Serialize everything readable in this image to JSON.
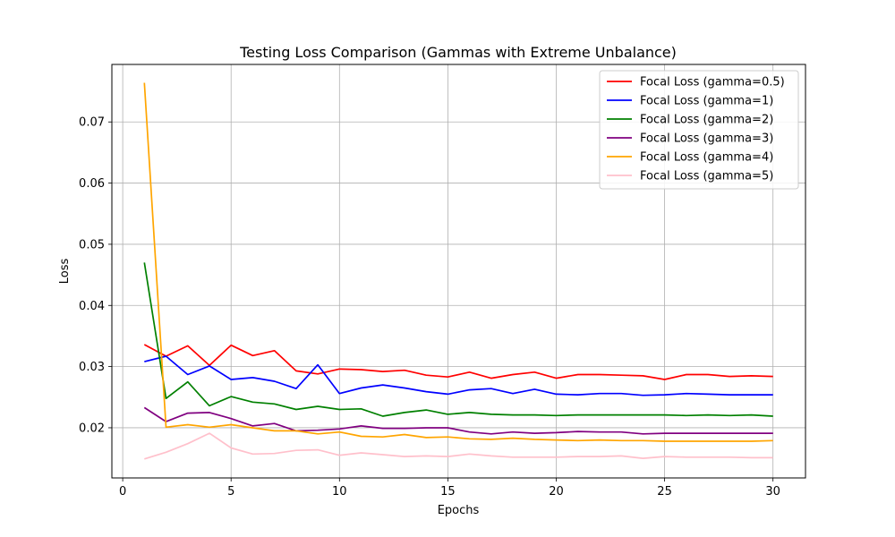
{
  "chart_data": {
    "type": "line",
    "title": "Testing Loss Comparison (Gammas with Extreme Unbalance)",
    "xlabel": "Epochs",
    "ylabel": "Loss",
    "xlim": [
      -0.5,
      31.5
    ],
    "ylim": [
      0.0118,
      0.0794
    ],
    "xticks": [
      0,
      5,
      10,
      15,
      20,
      25,
      30
    ],
    "yticks": [
      0.02,
      0.03,
      0.04,
      0.05,
      0.06,
      0.07
    ],
    "xtick_labels": [
      "0",
      "5",
      "10",
      "15",
      "20",
      "25",
      "30"
    ],
    "ytick_labels": [
      "0.02",
      "0.03",
      "0.04",
      "0.05",
      "0.06",
      "0.07"
    ],
    "grid": true,
    "legend_position": "top-right",
    "x": [
      1,
      2,
      3,
      4,
      5,
      6,
      7,
      8,
      9,
      10,
      11,
      12,
      13,
      14,
      15,
      16,
      17,
      18,
      19,
      20,
      21,
      22,
      23,
      24,
      25,
      26,
      27,
      28,
      29,
      30
    ],
    "series": [
      {
        "name": "Focal Loss (gamma=0.5)",
        "color": "#ff0000",
        "values": [
          0.0336,
          0.0317,
          0.0334,
          0.0302,
          0.0335,
          0.0318,
          0.0326,
          0.0293,
          0.0288,
          0.0296,
          0.0295,
          0.0292,
          0.0294,
          0.0286,
          0.0283,
          0.0291,
          0.0281,
          0.0287,
          0.0291,
          0.0281,
          0.0287,
          0.0287,
          0.0286,
          0.0285,
          0.0279,
          0.0287,
          0.0287,
          0.0284,
          0.0285,
          0.0284
        ]
      },
      {
        "name": "Focal Loss (gamma=1)",
        "color": "#0000ff",
        "values": [
          0.0308,
          0.0317,
          0.0287,
          0.0301,
          0.0279,
          0.0282,
          0.0276,
          0.0264,
          0.0303,
          0.0256,
          0.0265,
          0.027,
          0.0265,
          0.0259,
          0.0255,
          0.0262,
          0.0264,
          0.0256,
          0.0263,
          0.0255,
          0.0254,
          0.0256,
          0.0256,
          0.0253,
          0.0254,
          0.0256,
          0.0255,
          0.0254,
          0.0254,
          0.0254
        ]
      },
      {
        "name": "Focal Loss (gamma=2)",
        "color": "#008000",
        "values": [
          0.047,
          0.0248,
          0.0275,
          0.0236,
          0.0251,
          0.0242,
          0.0239,
          0.023,
          0.0235,
          0.023,
          0.0231,
          0.0219,
          0.0225,
          0.0229,
          0.0222,
          0.0225,
          0.0222,
          0.0221,
          0.0221,
          0.022,
          0.0221,
          0.0221,
          0.0221,
          0.0221,
          0.0221,
          0.022,
          0.0221,
          0.022,
          0.0221,
          0.0219
        ]
      },
      {
        "name": "Focal Loss (gamma=3)",
        "color": "#800080",
        "values": [
          0.0233,
          0.021,
          0.0224,
          0.0225,
          0.0215,
          0.0203,
          0.0207,
          0.0195,
          0.0196,
          0.0198,
          0.0203,
          0.0199,
          0.0199,
          0.02,
          0.02,
          0.0193,
          0.019,
          0.0193,
          0.0191,
          0.0192,
          0.0194,
          0.0193,
          0.0193,
          0.019,
          0.0191,
          0.0191,
          0.0191,
          0.0191,
          0.0191,
          0.0191
        ]
      },
      {
        "name": "Focal Loss (gamma=4)",
        "color": "#ffa500",
        "values": [
          0.0764,
          0.0201,
          0.0205,
          0.0201,
          0.0205,
          0.02,
          0.0195,
          0.0195,
          0.019,
          0.0193,
          0.0186,
          0.0185,
          0.0189,
          0.0184,
          0.0185,
          0.0182,
          0.0181,
          0.0183,
          0.0181,
          0.018,
          0.0179,
          0.018,
          0.0179,
          0.0179,
          0.0178,
          0.0178,
          0.0178,
          0.0178,
          0.0178,
          0.0179
        ]
      },
      {
        "name": "Focal Loss (gamma=5)",
        "color": "#ffc0cb",
        "values": [
          0.0149,
          0.016,
          0.0174,
          0.0191,
          0.0167,
          0.0157,
          0.0158,
          0.0163,
          0.0164,
          0.0155,
          0.0159,
          0.0156,
          0.0153,
          0.0154,
          0.0153,
          0.0157,
          0.0154,
          0.0152,
          0.0152,
          0.0152,
          0.0153,
          0.0153,
          0.0154,
          0.015,
          0.0153,
          0.0152,
          0.0152,
          0.0152,
          0.0151,
          0.0151
        ]
      }
    ]
  }
}
